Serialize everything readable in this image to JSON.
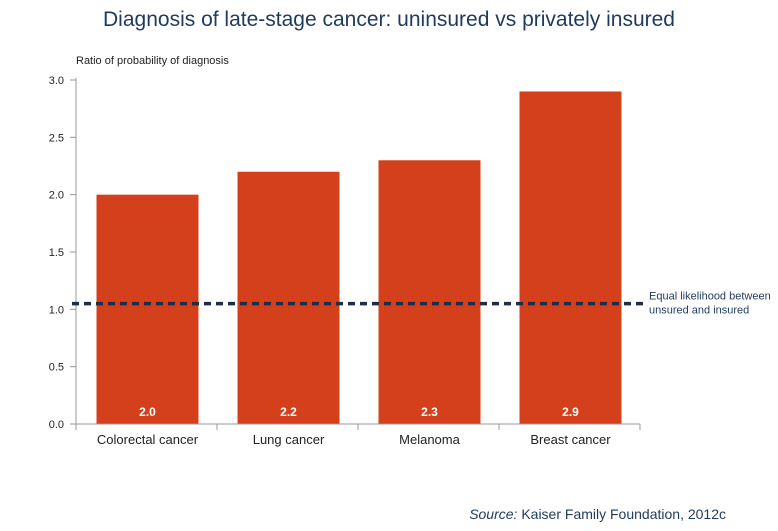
{
  "chart_data": {
    "type": "bar",
    "title": "Diagnosis of late-stage cancer: uninsured vs privately insured",
    "ylabel": "Ratio of probability of diagnosis",
    "xlabel": "",
    "categories": [
      "Colorectal cancer",
      "Lung cancer",
      "Melanoma",
      "Breast cancer"
    ],
    "values": [
      2.0,
      2.2,
      2.3,
      2.9
    ],
    "data_labels": [
      "2.0",
      "2.2",
      "2.3",
      "2.9"
    ],
    "ylim": [
      0,
      3.0
    ],
    "yticks": [
      "0.0",
      "0.5",
      "1.0",
      "1.5",
      "2.0",
      "2.5",
      "3.0"
    ],
    "grid": false,
    "reference_line": {
      "value": 1.05,
      "label_line1": "Equal likelihood between",
      "label_line2": "unsured and insured",
      "color": "#1f2d4a"
    },
    "bar_color": "#d5401c"
  },
  "source": {
    "prefix": "Source:",
    "text": " Kaiser Family Foundation, 2012c"
  }
}
